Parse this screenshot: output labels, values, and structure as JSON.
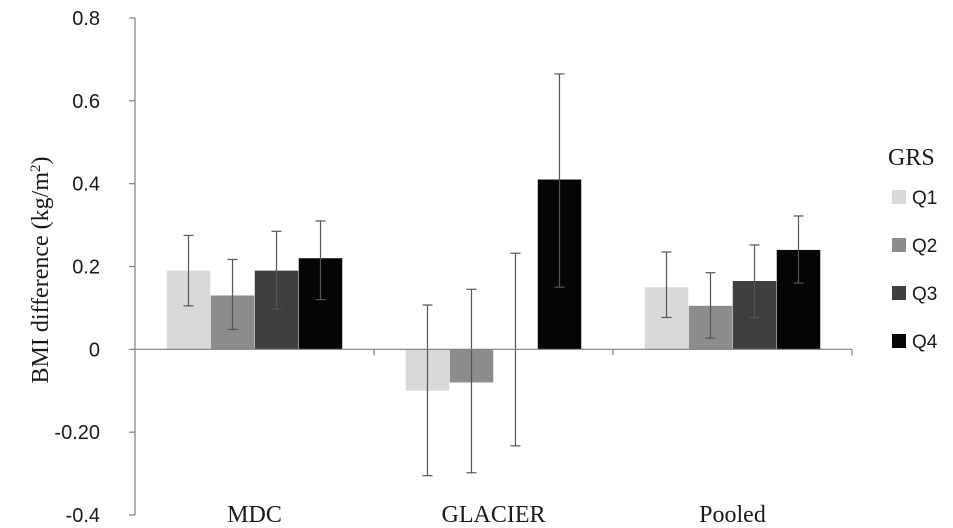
{
  "chart_data": {
    "type": "bar",
    "ylabel": "BMI difference (kg/m",
    "ylabel_superscript": "2",
    "ylabel_suffix": ")",
    "ylim": [
      -0.4,
      0.8
    ],
    "yticks": [
      -0.4,
      -0.2,
      0,
      0.2,
      0.4,
      0.6,
      0.8
    ],
    "ytick_labels": [
      "-0.4",
      "-0.20",
      "0",
      "0.2",
      "0.4",
      "0.6",
      "0.8"
    ],
    "categories": [
      "MDC",
      "GLACIER",
      "Pooled"
    ],
    "legend_title": "GRS",
    "legend_position": "right",
    "grid": false,
    "series": [
      {
        "name": "Q1",
        "color": "#d9d9d9",
        "values": [
          0.19,
          -0.1,
          0.15
        ],
        "err_low": [
          0.105,
          -0.305,
          0.077
        ],
        "err_high": [
          0.275,
          0.107,
          0.235
        ]
      },
      {
        "name": "Q2",
        "color": "#8c8c8c",
        "values": [
          0.13,
          -0.08,
          0.105
        ],
        "err_low": [
          0.048,
          -0.298,
          0.027
        ],
        "err_high": [
          0.217,
          0.145,
          0.185
        ]
      },
      {
        "name": "Q3",
        "color": "#3f3f3f",
        "values": [
          0.19,
          null,
          0.165
        ],
        "err_low": [
          0.097,
          -0.233,
          0.077
        ],
        "err_high": [
          0.285,
          0.232,
          0.252
        ]
      },
      {
        "name": "Q4",
        "color": "#050505",
        "values": [
          0.22,
          0.41,
          0.24
        ],
        "err_low": [
          0.12,
          0.15,
          0.16
        ],
        "err_high": [
          0.31,
          0.665,
          0.322
        ]
      }
    ]
  }
}
